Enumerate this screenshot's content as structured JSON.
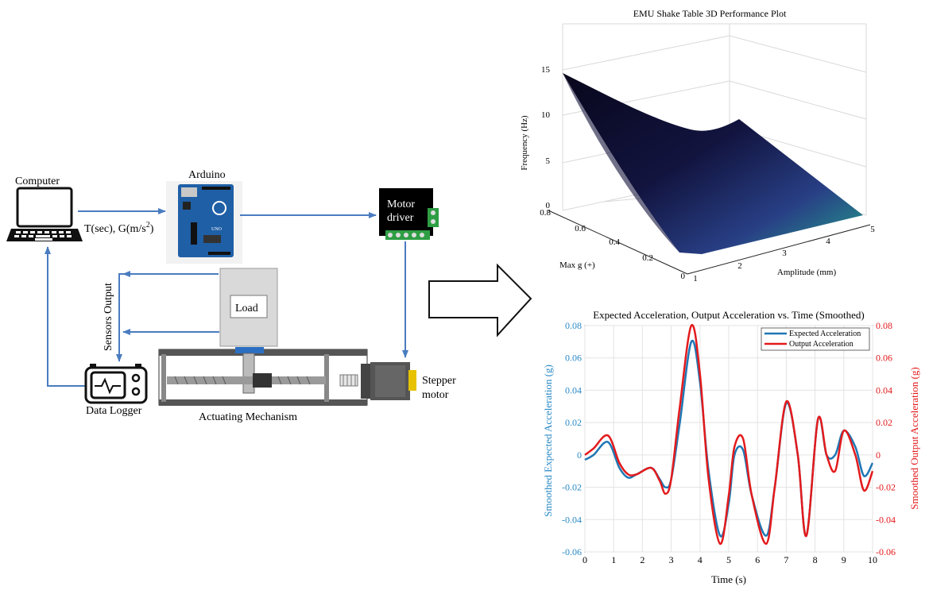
{
  "diagram": {
    "computer_label": "Computer",
    "arduino_label": "Arduino",
    "signal_label_main": "T(sec), G(m/s",
    "signal_label_sup": "2",
    "signal_label_end": ")",
    "motor_driver_line1": "Motor",
    "motor_driver_line2": "driver",
    "load_label": "Load",
    "sensors_output_label": "Sensors Output",
    "stepper_line1": "Stepper",
    "stepper_line2": "motor",
    "data_logger_label": "Data Logger",
    "actuating_label": "Actuating Mechanism",
    "arrow_color": "#4a7cc0"
  },
  "chart_data": [
    {
      "type": "surface",
      "title": "EMU Shake Table 3D Performance Plot",
      "xlabel": "Amplitude (mm)",
      "ylabel": "Max g (+)",
      "zlabel": "Frequency (Hz)",
      "x_ticks": [
        "1",
        "2",
        "3",
        "4",
        "5"
      ],
      "y_ticks": [
        "0",
        "0.2",
        "0.4",
        "0.6",
        "0.8"
      ],
      "z_ticks": [
        "0",
        "5",
        "10",
        "15"
      ],
      "xlim": [
        1,
        5
      ],
      "ylim": [
        0,
        0.8
      ],
      "zlim": [
        0,
        15
      ],
      "grid": true,
      "colormap": [
        "#0d0a23",
        "#1f1f5c",
        "#2d4d8f",
        "#2f7f9a",
        "#21a38a"
      ]
    },
    {
      "type": "line",
      "title": "Expected Acceleration, Output Acceleration vs. Time (Smoothed)",
      "xlabel": "Time (s)",
      "ylabel": "Smoothed Expected Acceleration (g)",
      "y2label": "Smoothed Output Acceleration (g)",
      "x_ticks": [
        "0",
        "1",
        "2",
        "3",
        "4",
        "5",
        "6",
        "7",
        "8",
        "9",
        "10"
      ],
      "y_ticks": [
        "-0.06",
        "-0.04",
        "-0.02",
        "0",
        "0.02",
        "0.04",
        "0.06",
        "0.08"
      ],
      "y2_ticks": [
        "-0.06",
        "-0.04",
        "-0.02",
        "0",
        "0.02",
        "0.04",
        "0.06",
        "0.08"
      ],
      "xlim": [
        0,
        10
      ],
      "ylim": [
        -0.06,
        0.08
      ],
      "grid": true,
      "legend": "top-right",
      "x": [
        0,
        0.3,
        0.8,
        1.2,
        1.5,
        1.8,
        2.3,
        2.6,
        2.8,
        3.0,
        3.3,
        3.7,
        4.0,
        4.3,
        4.7,
        5.0,
        5.2,
        5.5,
        5.8,
        6.3,
        6.6,
        7.0,
        7.4,
        7.7,
        8.1,
        8.4,
        8.7,
        9.0,
        9.4,
        9.7,
        10.0
      ],
      "series": [
        {
          "name": "Expected Acceleration",
          "color": "#1f77b4",
          "y_axis": "left",
          "values": [
            -0.003,
            0.0,
            0.008,
            -0.008,
            -0.014,
            -0.012,
            -0.008,
            -0.015,
            -0.02,
            -0.015,
            0.02,
            0.07,
            0.045,
            -0.01,
            -0.05,
            -0.03,
            0.0,
            0.003,
            -0.025,
            -0.05,
            -0.02,
            0.032,
            0.0,
            -0.05,
            0.022,
            0.0,
            0.0,
            0.015,
            0.005,
            -0.013,
            -0.005
          ]
        },
        {
          "name": "Output Acceleration",
          "color": "#e31a1c",
          "y_axis": "right",
          "values": [
            0.0,
            0.004,
            0.012,
            -0.005,
            -0.012,
            -0.012,
            -0.008,
            -0.016,
            -0.024,
            -0.015,
            0.03,
            0.08,
            0.05,
            -0.015,
            -0.055,
            -0.025,
            0.005,
            0.01,
            -0.025,
            -0.055,
            -0.02,
            0.033,
            0.0,
            -0.05,
            0.022,
            0.0,
            -0.01,
            0.015,
            0.0,
            -0.022,
            -0.01
          ]
        }
      ]
    }
  ]
}
